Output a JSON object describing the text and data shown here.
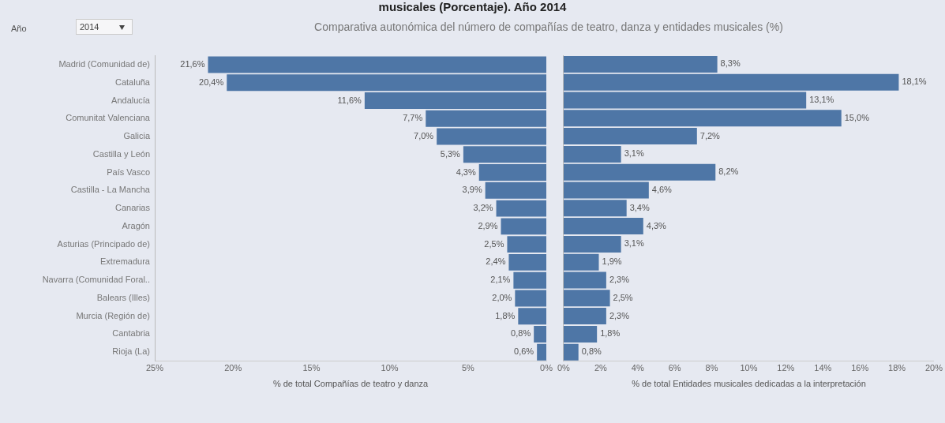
{
  "chart_data": [
    {
      "type": "bar",
      "orientation": "horizontal",
      "title": "musicales (Porcentaje). Año 2014",
      "subtitle": "Comparativa autonómica del número de compañías de teatro, danza y entidades musicales (%)",
      "annotations": [
        "Año",
        "2014"
      ],
      "categories": [
        "Madrid (Comunidad de)",
        "Cataluña",
        "Andalucía",
        "Comunitat Valenciana",
        "Galicia",
        "Castilla y León",
        "País Vasco",
        "Castilla - La Mancha",
        "Canarias",
        "Aragón",
        "Asturias (Principado de)",
        "Extremadura",
        "Navarra (Comunidad Foral..",
        "Balears (Illes)",
        "Murcia (Región de)",
        "Cantabria",
        "Rioja (La)"
      ],
      "values": [
        21.6,
        20.4,
        11.6,
        7.7,
        7.0,
        5.3,
        4.3,
        3.9,
        3.2,
        2.9,
        2.5,
        2.4,
        2.1,
        2.0,
        1.8,
        0.8,
        0.6
      ],
      "value_labels": [
        "21,6%",
        "20,4%",
        "11,6%",
        "7,7%",
        "7,0%",
        "5,3%",
        "4,3%",
        "3,9%",
        "3,2%",
        "2,9%",
        "2,5%",
        "2,4%",
        "2,1%",
        "2,0%",
        "1,8%",
        "0,8%",
        "0,6%"
      ],
      "color": "#4e76a6",
      "xlim": [
        25,
        0
      ],
      "xticks": [
        {
          "value": 25,
          "label": "25%"
        },
        {
          "value": 20,
          "label": "20%"
        },
        {
          "value": 15,
          "label": "15%"
        },
        {
          "value": 10,
          "label": "10%"
        },
        {
          "value": 5,
          "label": "5%"
        },
        {
          "value": 0,
          "label": "0%"
        }
      ],
      "xlabel": "% de total Compañías de teatro y danza",
      "grid": false
    },
    {
      "type": "bar",
      "orientation": "horizontal",
      "tick_labels": "x",
      "categories": [
        null,
        null,
        null,
        null,
        null,
        null,
        null,
        null,
        null,
        null,
        null,
        null,
        null,
        null,
        null,
        null,
        null
      ],
      "values": [
        8.3,
        18.1,
        13.1,
        15.0,
        7.2,
        3.1,
        8.2,
        4.6,
        3.4,
        4.3,
        3.1,
        1.9,
        2.3,
        2.5,
        2.3,
        1.8,
        0.8
      ],
      "value_labels": [
        "8,3%",
        "18,1%",
        "13,1%",
        "15,0%",
        "7,2%",
        "3,1%",
        "8,2%",
        "4,6%",
        "3,4%",
        "4,3%",
        "3,1%",
        "1,9%",
        "2,3%",
        "2,5%",
        "2,3%",
        "1,8%",
        "0,8%"
      ],
      "color": "#4e76a6",
      "xlim": [
        0,
        20
      ],
      "xticks": [
        {
          "value": 0,
          "label": "0%"
        },
        {
          "value": 2,
          "label": "2%"
        },
        {
          "value": 4,
          "label": "4%"
        },
        {
          "value": 6,
          "label": "6%"
        },
        {
          "value": 8,
          "label": "8%"
        },
        {
          "value": 10,
          "label": "10%"
        },
        {
          "value": 12,
          "label": "12%"
        },
        {
          "value": 14,
          "label": "14%"
        },
        {
          "value": 16,
          "label": "16%"
        },
        {
          "value": 18,
          "label": "18%"
        },
        {
          "value": 20,
          "label": "20%"
        }
      ],
      "xlabel": "% de total Entidades musicales dedicadas a la interpretación",
      "grid": false
    }
  ]
}
